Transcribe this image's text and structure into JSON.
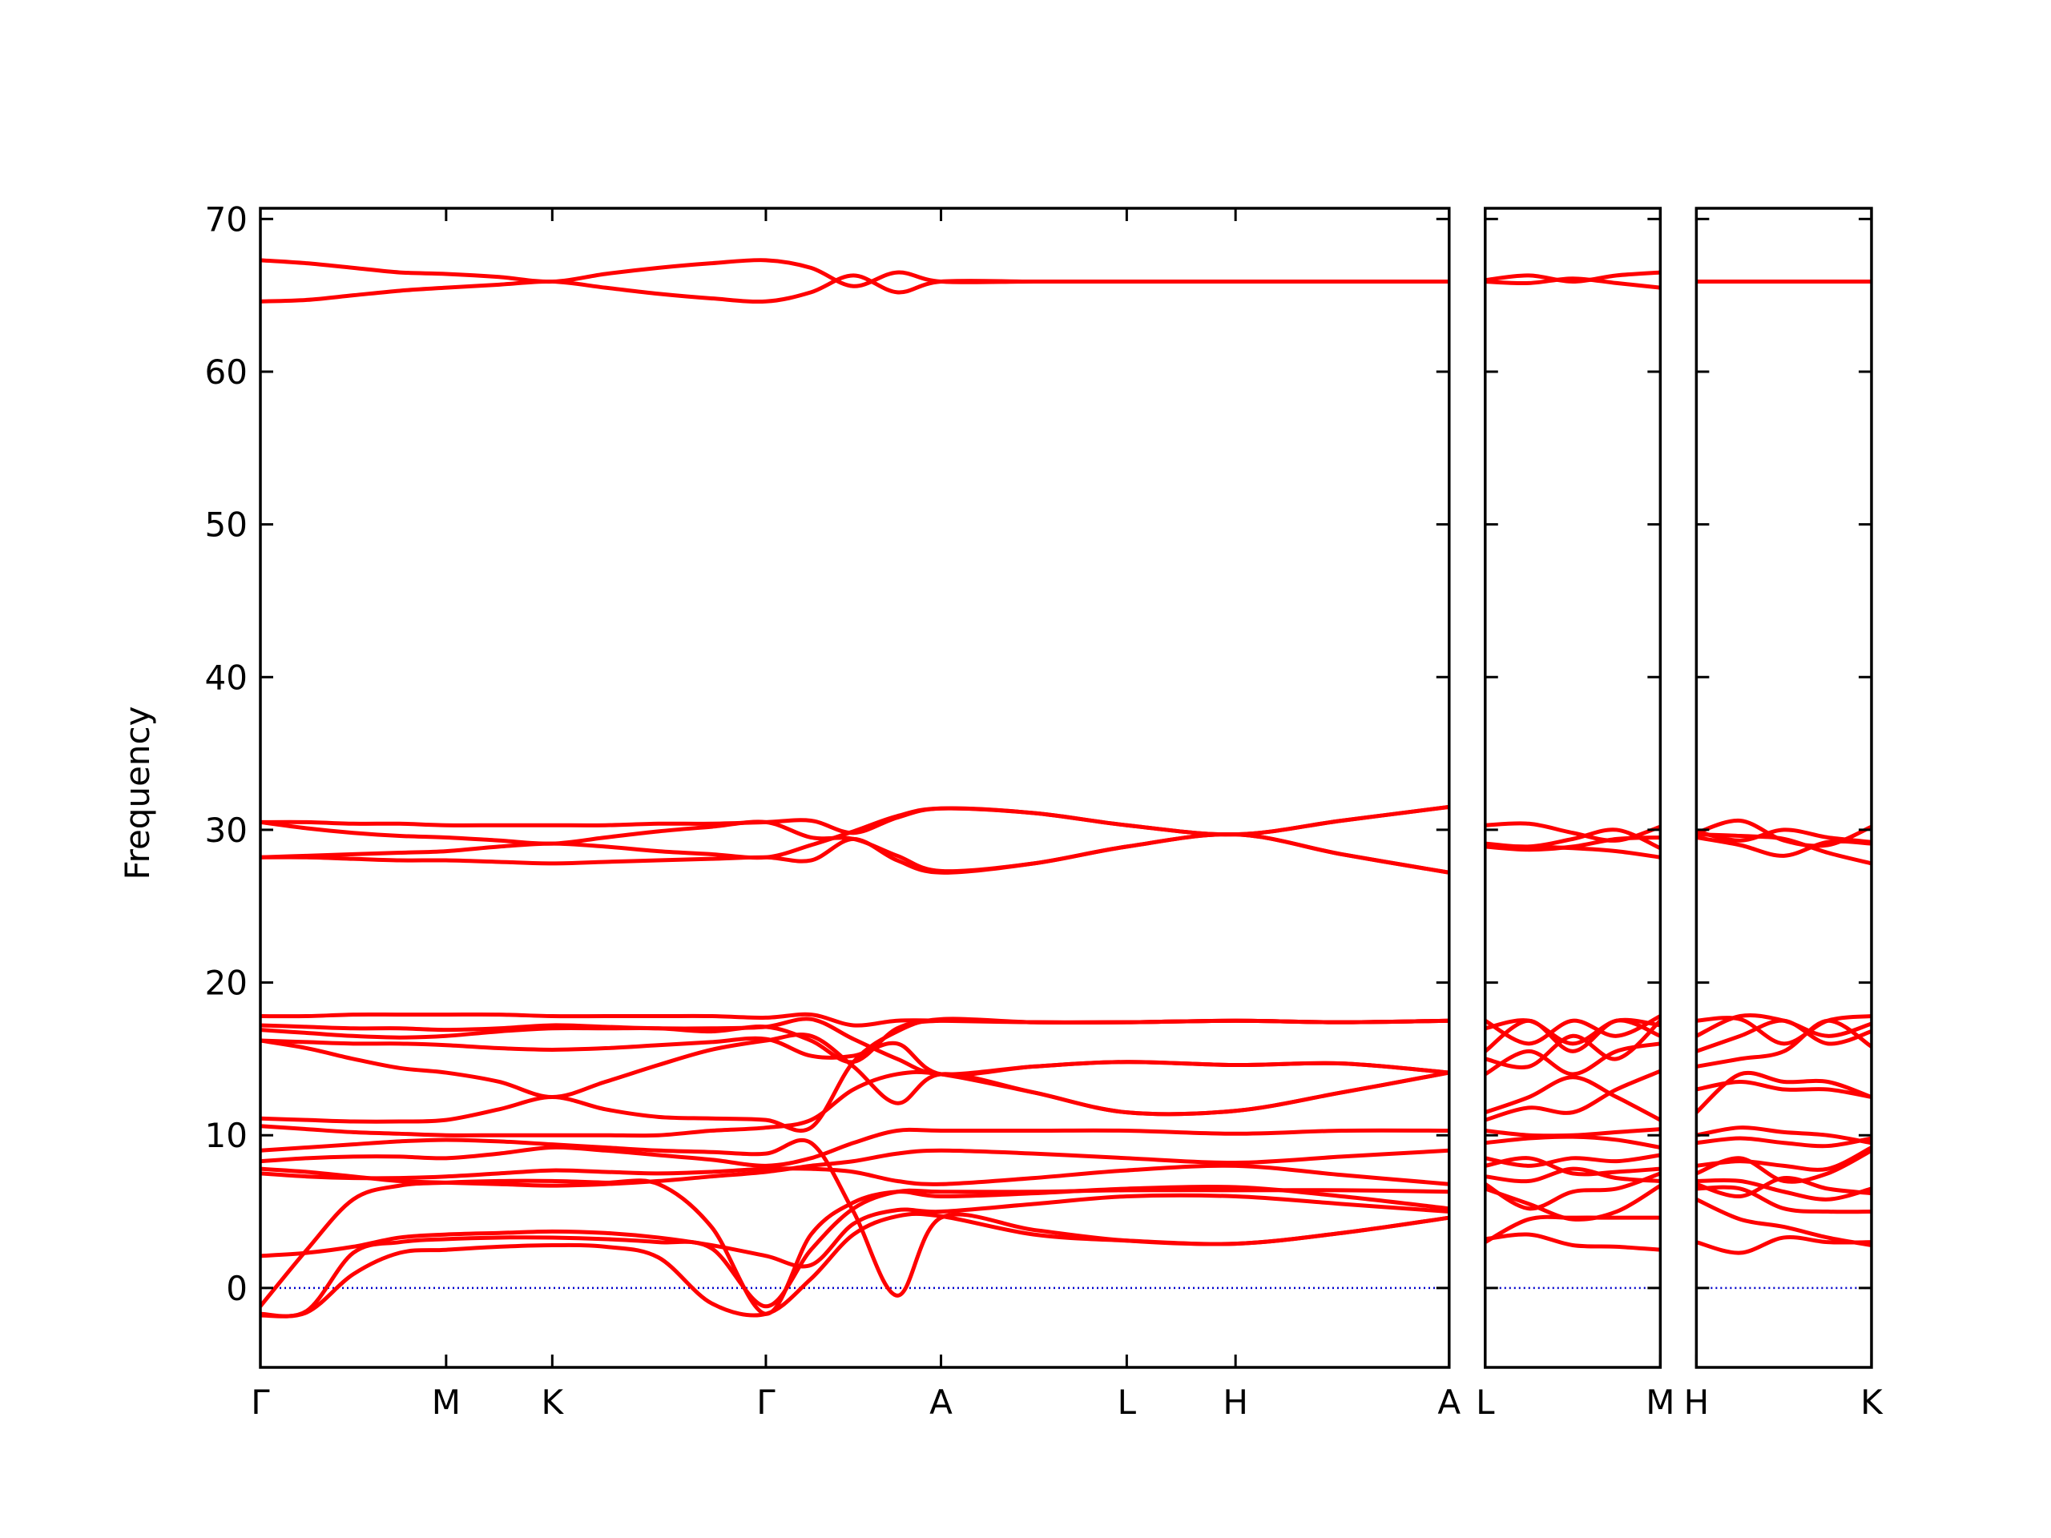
{
  "chart_data": [
    {
      "type": "line",
      "ylabel": "Frequency",
      "color": "#ff0000",
      "show_yticklabels": true,
      "zero_line": {
        "value": 0,
        "color": "#0000cc"
      },
      "xlim": [
        0,
        8.96
      ],
      "ylim": [
        -5.2,
        70.7
      ],
      "xticks": [
        {
          "value": 0,
          "label": "Γ"
        },
        {
          "value": 1.4,
          "label": "M"
        },
        {
          "value": 2.2,
          "label": "K"
        },
        {
          "value": 3.81,
          "label": "Γ"
        },
        {
          "value": 5.13,
          "label": "A"
        },
        {
          "value": 6.53,
          "label": "L"
        },
        {
          "value": 7.35,
          "label": "H"
        },
        {
          "value": 8.96,
          "label": "A"
        }
      ],
      "yticks": [
        0,
        10,
        20,
        30,
        40,
        50,
        60,
        70
      ],
      "x": [
        0,
        0.35,
        0.7,
        1.05,
        1.4,
        1.8,
        2.2,
        2.6,
        3.0,
        3.4,
        3.81,
        4.15,
        4.47,
        4.8,
        5.13,
        5.83,
        6.53,
        7.35,
        8.15,
        8.96
      ],
      "bands": [
        [
          67.3,
          67.1,
          66.8,
          66.5,
          66.4,
          66.2,
          65.9,
          66.4,
          66.8,
          67.1,
          67.3,
          66.8,
          65.6,
          66.5,
          65.9,
          65.9,
          65.9,
          65.9,
          65.9,
          65.9
        ],
        [
          64.6,
          64.7,
          65.0,
          65.3,
          65.5,
          65.7,
          65.9,
          65.5,
          65.1,
          64.8,
          64.6,
          65.2,
          66.3,
          65.2,
          65.9,
          65.9,
          65.9,
          65.9,
          65.9,
          65.9
        ],
        [
          30.5,
          30.5,
          30.4,
          30.4,
          30.3,
          30.3,
          30.3,
          30.3,
          30.4,
          30.4,
          30.5,
          30.6,
          29.8,
          30.8,
          31.4,
          31.1,
          30.3,
          29.7,
          30.6,
          31.5
        ],
        [
          30.5,
          30.1,
          29.8,
          29.6,
          29.5,
          29.3,
          29.1,
          29.5,
          29.9,
          30.2,
          30.5,
          29.5,
          29.4,
          28.3,
          27.3,
          27.8,
          28.9,
          29.7,
          28.4,
          27.2
        ],
        [
          28.2,
          28.3,
          28.4,
          28.5,
          28.6,
          28.9,
          29.1,
          28.9,
          28.6,
          28.4,
          28.2,
          29.0,
          29.9,
          30.9,
          31.4,
          31.1,
          30.3,
          29.7,
          30.6,
          31.5
        ],
        [
          28.2,
          28.2,
          28.1,
          28.0,
          28.0,
          27.9,
          27.8,
          27.9,
          28.0,
          28.1,
          28.2,
          28.0,
          29.4,
          28.0,
          27.2,
          27.8,
          28.9,
          29.7,
          28.4,
          27.2
        ],
        [
          17.8,
          17.8,
          17.9,
          17.9,
          17.9,
          17.9,
          17.8,
          17.8,
          17.8,
          17.8,
          17.7,
          17.9,
          17.2,
          17.5,
          17.5,
          17.4,
          17.4,
          17.5,
          17.4,
          17.5
        ],
        [
          17.2,
          17.1,
          17.0,
          17.0,
          16.9,
          17.0,
          17.2,
          17.1,
          17.0,
          17.0,
          17.1,
          17.6,
          16.3,
          15.0,
          14.0,
          14.5,
          14.8,
          14.6,
          14.7,
          14.1
        ],
        [
          16.9,
          16.7,
          16.5,
          16.4,
          16.5,
          16.8,
          17.0,
          17.0,
          17.0,
          16.8,
          17.1,
          16.2,
          14.8,
          17.0,
          17.5,
          17.4,
          17.4,
          17.5,
          17.4,
          17.5
        ],
        [
          16.2,
          16.1,
          16.0,
          16.0,
          15.9,
          15.7,
          15.6,
          15.7,
          15.9,
          16.1,
          16.3,
          15.2,
          15.2,
          16.0,
          14.0,
          14.5,
          14.8,
          14.6,
          14.7,
          14.1
        ],
        [
          16.2,
          15.7,
          15.0,
          14.4,
          14.1,
          13.5,
          12.5,
          13.5,
          14.6,
          15.6,
          16.2,
          16.5,
          14.5,
          12.1,
          14.0,
          12.8,
          11.5,
          11.6,
          12.8,
          14.1
        ],
        [
          11.1,
          11.0,
          10.9,
          10.9,
          11.0,
          11.7,
          12.5,
          11.7,
          11.2,
          11.1,
          11.0,
          10.5,
          14.8,
          16.8,
          17.6,
          17.4,
          17.4,
          17.5,
          17.4,
          17.5
        ],
        [
          10.6,
          10.4,
          10.2,
          10.1,
          10.0,
          10.0,
          10.0,
          10.0,
          10.0,
          10.3,
          10.5,
          11.0,
          13.0,
          14.0,
          14.0,
          12.8,
          11.5,
          11.6,
          12.8,
          14.1
        ],
        [
          9.0,
          9.2,
          9.4,
          9.6,
          9.7,
          9.6,
          9.4,
          9.2,
          9.0,
          8.9,
          8.8,
          9.5,
          5.0,
          -0.5,
          4.6,
          3.8,
          3.1,
          2.9,
          3.6,
          4.6
        ],
        [
          8.3,
          8.5,
          8.6,
          8.6,
          8.5,
          8.8,
          9.2,
          9.0,
          8.7,
          8.4,
          8.0,
          8.5,
          9.5,
          10.3,
          10.3,
          10.3,
          10.3,
          10.1,
          10.3,
          10.3
        ],
        [
          7.8,
          7.6,
          7.3,
          7.0,
          6.9,
          6.8,
          6.7,
          6.8,
          7.0,
          7.3,
          7.6,
          8.0,
          8.3,
          8.8,
          9.0,
          8.8,
          8.5,
          8.2,
          8.6,
          9.0
        ],
        [
          7.5,
          7.3,
          7.2,
          7.2,
          7.3,
          7.5,
          7.7,
          7.6,
          7.5,
          7.6,
          7.8,
          7.8,
          7.6,
          7.0,
          6.8,
          7.2,
          7.7,
          8.0,
          7.4,
          6.8
        ],
        [
          -1.7,
          -1.5,
          2.3,
          3.0,
          3.2,
          3.3,
          3.3,
          3.2,
          3.0,
          2.6,
          -1.2,
          2.5,
          5.2,
          6.3,
          6.3,
          6.3,
          6.4,
          6.4,
          6.4,
          6.3
        ],
        [
          -1.2,
          2.5,
          5.8,
          6.7,
          6.9,
          7.0,
          7.0,
          6.9,
          6.8,
          4.0,
          -1.7,
          3.5,
          5.6,
          6.3,
          6.0,
          6.2,
          6.5,
          6.6,
          6.0,
          5.2
        ],
        [
          -1.8,
          -1.6,
          0.9,
          2.3,
          2.5,
          2.7,
          2.8,
          2.7,
          2.0,
          -1.0,
          -1.7,
          0.6,
          3.5,
          4.7,
          4.7,
          3.5,
          3.1,
          2.9,
          3.6,
          4.6
        ],
        [
          2.1,
          2.3,
          2.7,
          3.3,
          3.5,
          3.6,
          3.7,
          3.6,
          3.3,
          2.8,
          2.1,
          1.5,
          4.2,
          5.1,
          5.0,
          5.5,
          6.0,
          6.0,
          5.5,
          5.0
        ]
      ]
    },
    {
      "type": "line",
      "color": "#ff0000",
      "show_yticklabels": false,
      "zero_line": {
        "value": 0,
        "color": "#0000cc"
      },
      "xlim": [
        0,
        1.32
      ],
      "ylim": [
        -5.2,
        70.7
      ],
      "xticks": [
        {
          "value": 0,
          "label": "L"
        },
        {
          "value": 1.32,
          "label": "M"
        }
      ],
      "yticks": [
        0,
        10,
        20,
        30,
        40,
        50,
        60,
        70
      ],
      "x": [
        0,
        0.33,
        0.66,
        0.99,
        1.32
      ],
      "bands": [
        [
          66.0,
          66.3,
          65.9,
          66.3,
          66.5
        ],
        [
          65.9,
          65.8,
          66.1,
          65.8,
          65.5
        ],
        [
          30.3,
          30.4,
          29.8,
          29.3,
          30.2
        ],
        [
          29.1,
          28.9,
          29.4,
          30.0,
          28.8
        ],
        [
          28.9,
          28.7,
          28.9,
          29.4,
          29.5
        ],
        [
          28.9,
          28.9,
          28.8,
          28.6,
          28.2
        ],
        [
          17.5,
          16.0,
          17.5,
          16.5,
          17.8
        ],
        [
          17.0,
          17.5,
          16.0,
          17.5,
          17.2
        ],
        [
          15.5,
          17.5,
          15.5,
          17.5,
          16.5
        ],
        [
          15.0,
          14.5,
          16.5,
          15.0,
          17.5
        ],
        [
          14.0,
          15.5,
          14.0,
          15.5,
          16.0
        ],
        [
          11.5,
          12.5,
          13.8,
          12.5,
          11.0
        ],
        [
          11.0,
          11.8,
          11.5,
          13.0,
          14.2
        ],
        [
          10.3,
          10.0,
          10.0,
          10.2,
          10.4
        ],
        [
          9.5,
          9.8,
          9.9,
          9.7,
          9.2
        ],
        [
          8.5,
          8.0,
          8.5,
          8.3,
          8.7
        ],
        [
          8.0,
          8.5,
          7.5,
          7.6,
          7.8
        ],
        [
          7.3,
          7.0,
          7.8,
          7.2,
          7.0
        ],
        [
          6.5,
          5.5,
          4.5,
          5.0,
          6.7
        ],
        [
          3.0,
          4.5,
          4.6,
          4.6,
          4.6
        ],
        [
          3.2,
          3.5,
          2.8,
          2.7,
          2.5
        ],
        [
          6.8,
          5.2,
          6.3,
          6.5,
          7.5
        ]
      ]
    },
    {
      "type": "line",
      "color": "#ff0000",
      "show_yticklabels": false,
      "zero_line": {
        "value": 0,
        "color": "#0000cc"
      },
      "xlim": [
        0,
        1.32
      ],
      "ylim": [
        -5.2,
        70.7
      ],
      "xticks": [
        {
          "value": 0,
          "label": "H"
        },
        {
          "value": 1.32,
          "label": "K"
        }
      ],
      "yticks": [
        0,
        10,
        20,
        30,
        40,
        50,
        60,
        70
      ],
      "x": [
        0,
        0.33,
        0.66,
        0.99,
        1.32
      ],
      "bands": [
        [
          65.9,
          65.9,
          65.9,
          65.9,
          65.9
        ],
        [
          65.9,
          65.9,
          65.9,
          65.9,
          65.9
        ],
        [
          29.8,
          30.6,
          29.3,
          29.0,
          30.2
        ],
        [
          29.9,
          29.3,
          30.0,
          29.5,
          29.2
        ],
        [
          29.5,
          29.0,
          28.3,
          29.2,
          29.1
        ],
        [
          29.7,
          29.6,
          29.4,
          28.5,
          27.8
        ],
        [
          17.5,
          17.6,
          16.0,
          17.5,
          17.8
        ],
        [
          16.5,
          17.8,
          17.5,
          16.5,
          17.3
        ],
        [
          15.5,
          16.5,
          17.5,
          16.0,
          16.8
        ],
        [
          14.5,
          15.0,
          15.5,
          17.5,
          15.8
        ],
        [
          13.0,
          13.5,
          13.0,
          13.0,
          12.5
        ],
        [
          11.5,
          14.0,
          13.5,
          13.5,
          12.5
        ],
        [
          10.0,
          10.5,
          10.2,
          10.0,
          9.5
        ],
        [
          9.5,
          9.8,
          9.5,
          9.3,
          9.8
        ],
        [
          8.0,
          8.3,
          8.0,
          7.8,
          9.2
        ],
        [
          7.5,
          8.5,
          7.0,
          7.5,
          9.0
        ],
        [
          6.8,
          6.0,
          7.2,
          6.5,
          6.2
        ],
        [
          6.5,
          6.5,
          5.2,
          5.0,
          5.0
        ],
        [
          3.0,
          2.3,
          3.3,
          3.0,
          3.0
        ],
        [
          5.8,
          4.5,
          4.0,
          3.3,
          2.8
        ],
        [
          7.0,
          7.0,
          6.3,
          5.8,
          6.5
        ]
      ]
    }
  ]
}
